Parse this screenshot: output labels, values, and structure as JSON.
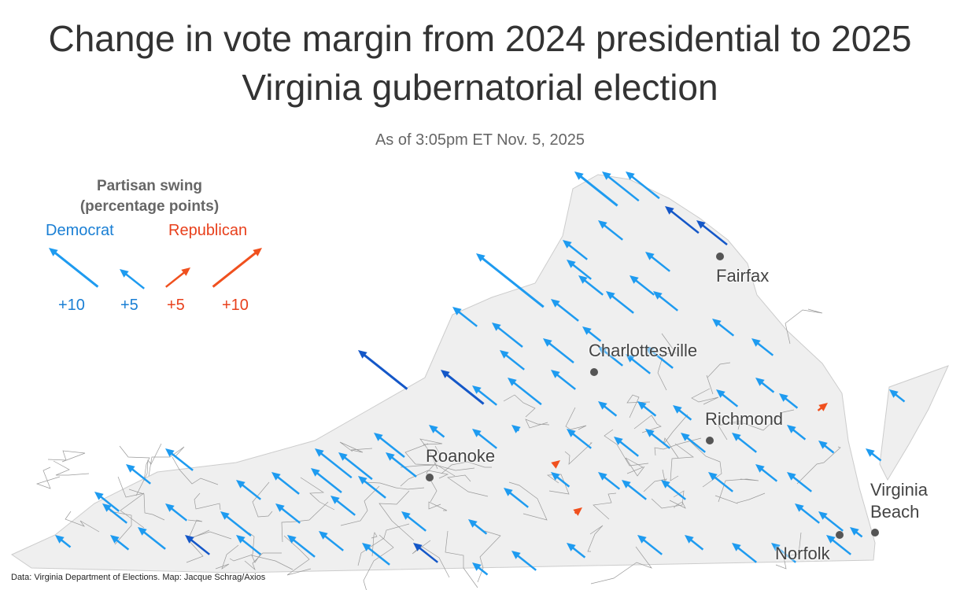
{
  "title": "Change in vote margin from 2024 presidential to 2025 Virginia gubernatorial election",
  "subtitle": "As of 3:05pm ET Nov. 5, 2025",
  "legend": {
    "title_line1": "Partisan swing",
    "title_line2": "(percentage points)",
    "democrat_label": "Democrat",
    "republican_label": "Republican",
    "dem_10": "+10",
    "dem_5": "+5",
    "rep_5": "+5",
    "rep_10": "+10"
  },
  "cities": {
    "fairfax": "Fairfax",
    "charlottesville": "Charlottesville",
    "richmond": "Richmond",
    "roanoke": "Roanoke",
    "virginia_beach_1": "Virginia",
    "virginia_beach_2": "Beach",
    "norfolk": "Norfolk"
  },
  "colors": {
    "democrat": "#1e9bf0",
    "democrat_strong": "#1457c8",
    "republican": "#f0501e",
    "land": "#efefef"
  },
  "source": "Data: Virginia Department of Elections. Map: Jacque Schrag/Axios"
}
